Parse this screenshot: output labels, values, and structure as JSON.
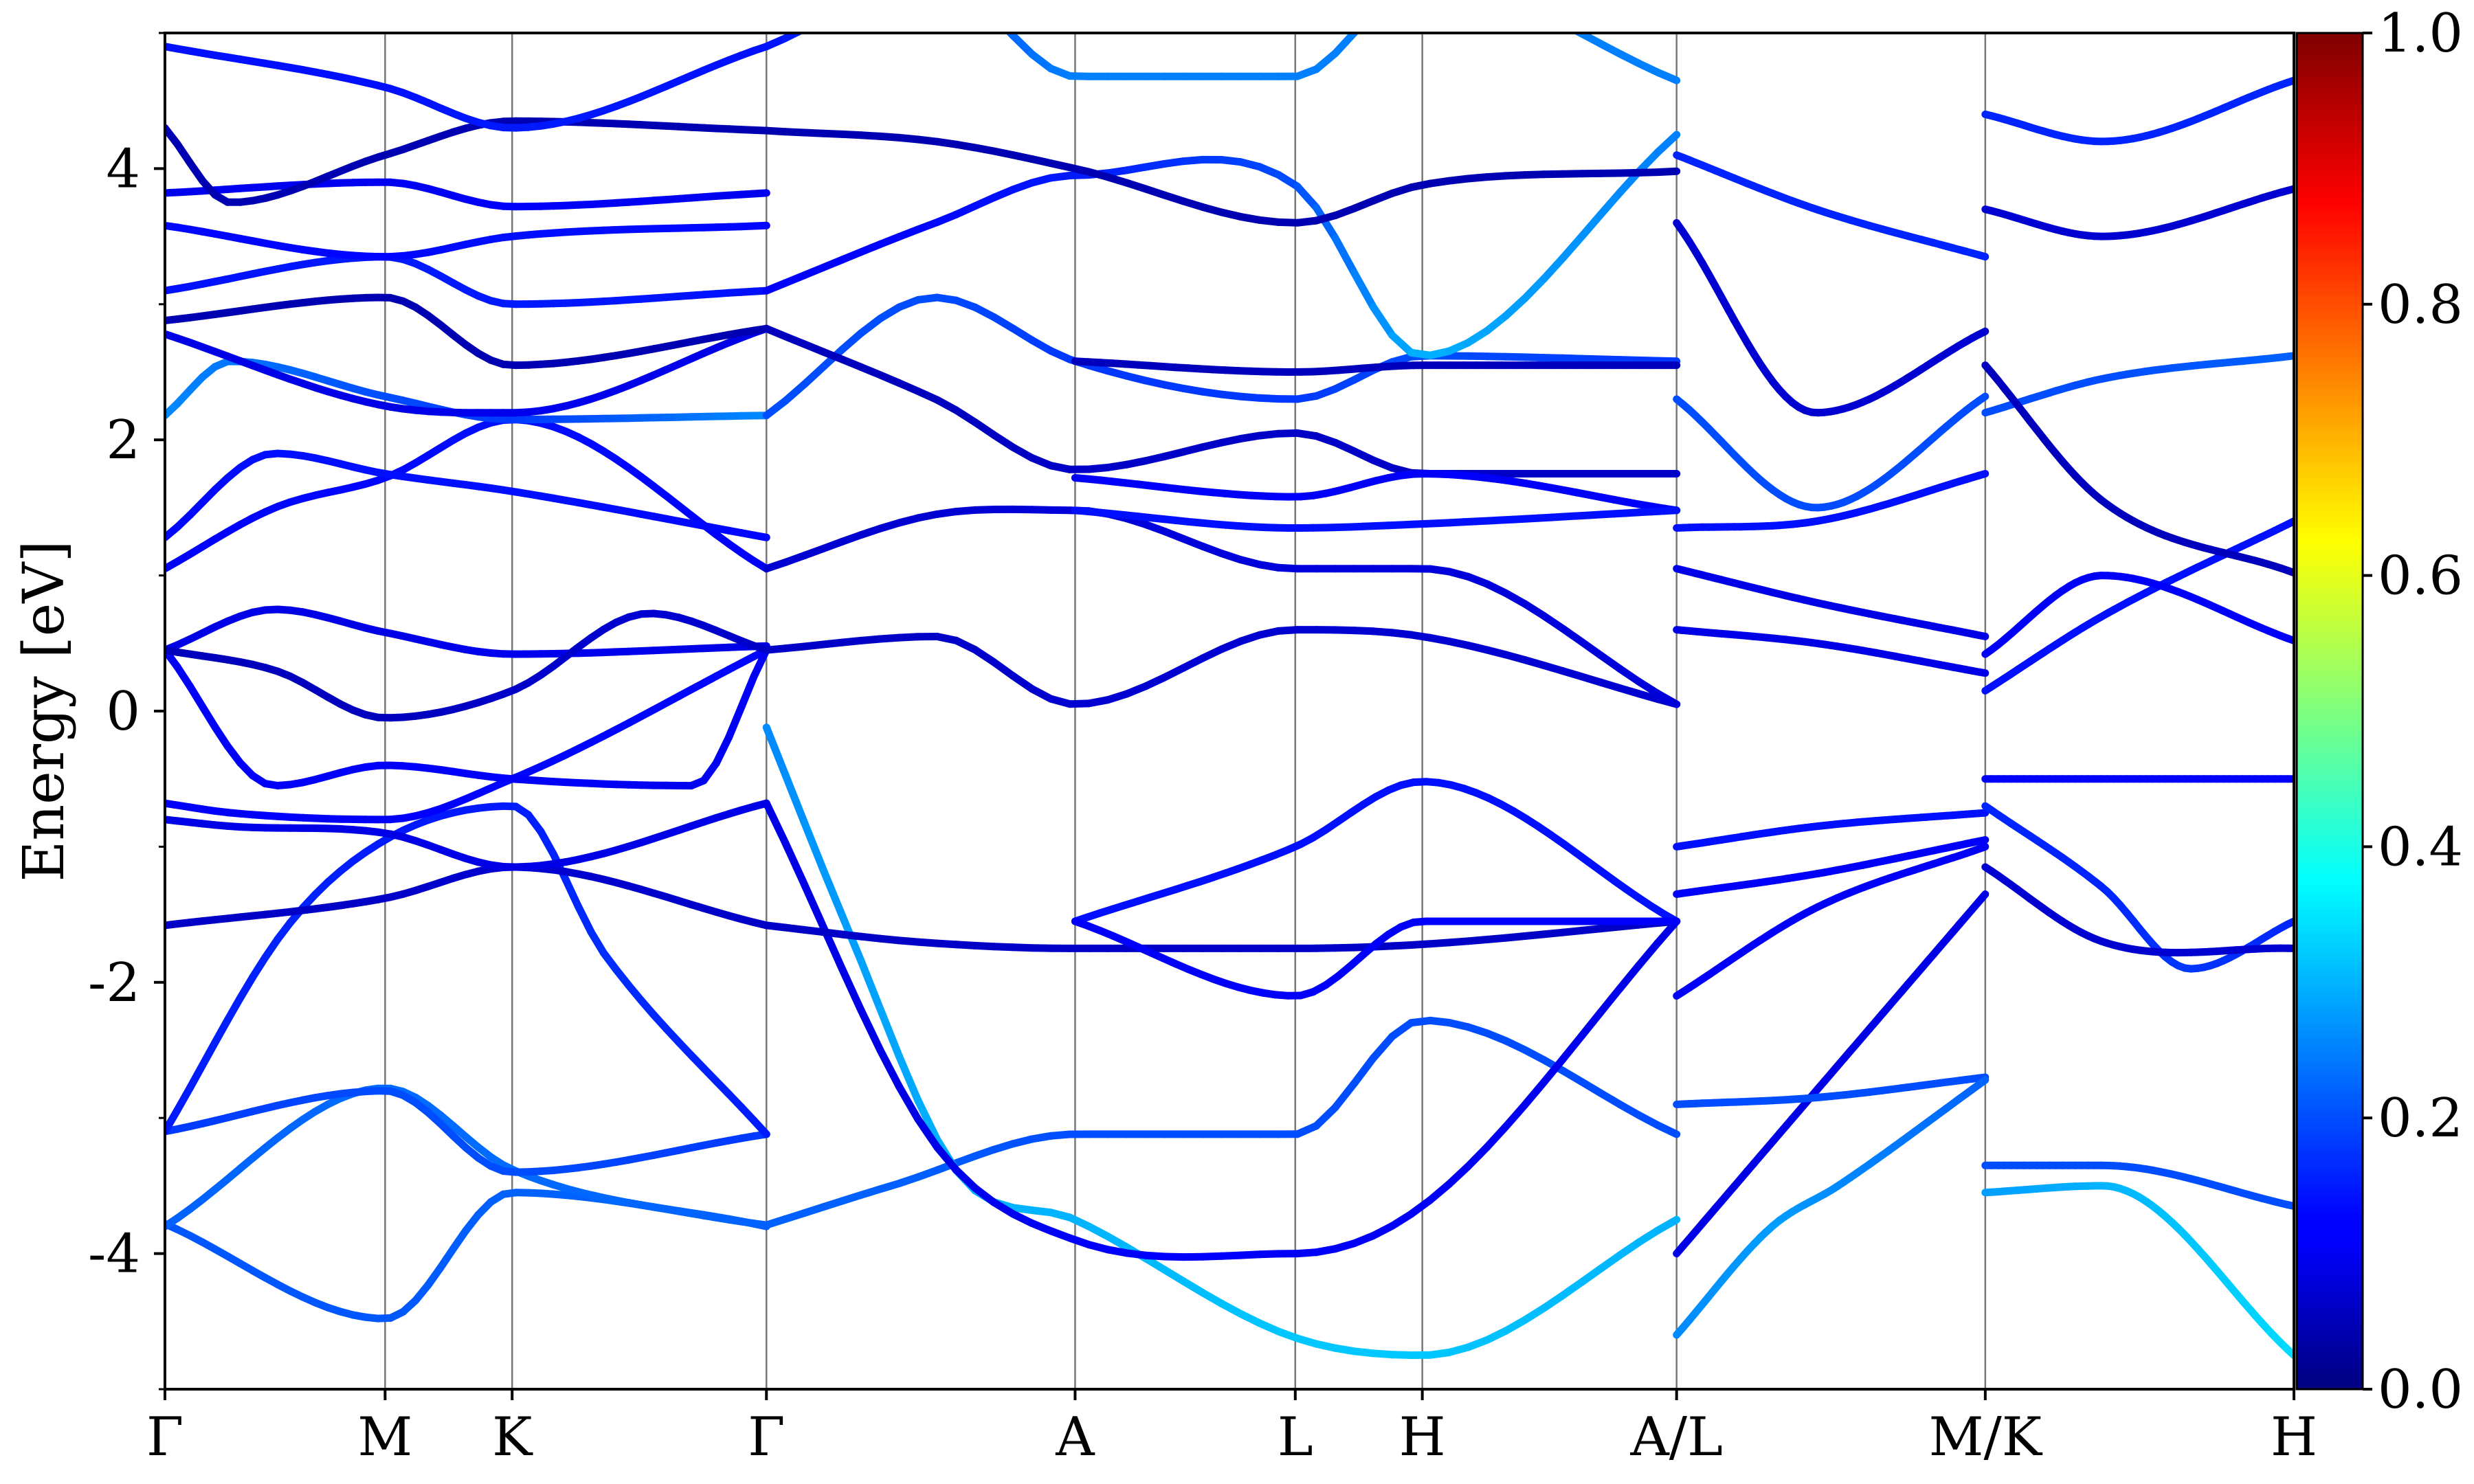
{
  "chart_data": {
    "type": "line",
    "title": "",
    "xlabel": "",
    "ylabel": "Energy [eV]",
    "ylim": [
      -5,
      5
    ],
    "y_ticks": [
      -4,
      -2,
      0,
      2,
      4
    ],
    "grid": false,
    "legend": "none",
    "kpoints": [
      {
        "label": "Γ",
        "x": 0.0
      },
      {
        "label": "M",
        "x": 1.0
      },
      {
        "label": "K",
        "x": 1.577
      },
      {
        "label": "Γ",
        "x": 2.732
      },
      {
        "label": "A",
        "x": 4.134
      },
      {
        "label": "L",
        "x": 5.134
      },
      {
        "label": "H",
        "x": 5.711
      },
      {
        "label": "A/L",
        "x": 6.866
      },
      {
        "label": "M/K",
        "x": 8.268
      },
      {
        "label": "H",
        "x": 9.67
      }
    ],
    "colorbar": {
      "range": [
        0.0,
        1.0
      ],
      "ticks": [
        "0.0",
        "0.2",
        "0.4",
        "0.6",
        "0.8",
        "1.0"
      ],
      "colormap": "jet"
    },
    "series": [
      {
        "x": [
          0.0,
          1.0,
          1.577,
          2.732
        ],
        "y": [
          -3.78,
          -4.48,
          -3.55,
          -3.79
        ],
        "w": [
          0.21,
          0.21,
          0.22,
          0.22
        ]
      },
      {
        "x": [
          0.0,
          1.0,
          1.577,
          2.732
        ],
        "y": [
          -3.8,
          -2.78,
          -3.38,
          -3.8
        ],
        "w": [
          0.22,
          0.23,
          0.23,
          0.22
        ]
      },
      {
        "x": [
          0.0,
          1.0,
          1.577,
          2.732
        ],
        "y": [
          -3.1,
          -2.8,
          -3.4,
          -3.12
        ],
        "w": [
          0.18,
          0.2,
          0.2,
          0.18
        ]
      },
      {
        "x": [
          0.0,
          0.55,
          1.0,
          1.577,
          2.0,
          2.732
        ],
        "y": [
          -3.1,
          -1.6,
          -0.95,
          -0.7,
          -1.8,
          -3.12
        ],
        "w": [
          0.15,
          0.16,
          0.15,
          0.15,
          0.17,
          0.15
        ]
      },
      {
        "x": [
          0.0,
          1.0,
          1.577,
          2.732
        ],
        "y": [
          -1.58,
          -1.38,
          -1.15,
          -1.58
        ],
        "w": [
          0.07,
          0.07,
          0.08,
          0.07
        ]
      },
      {
        "x": [
          0.0,
          0.3,
          1.0,
          1.577,
          2.732
        ],
        "y": [
          -0.8,
          -0.85,
          -0.9,
          -1.15,
          -0.68
        ],
        "w": [
          0.1,
          0.1,
          0.1,
          0.1,
          0.1
        ]
      },
      {
        "x": [
          0.0,
          0.3,
          1.0,
          1.577,
          2.732
        ],
        "y": [
          -0.68,
          -0.75,
          -0.8,
          -0.5,
          0.45
        ],
        "w": [
          0.12,
          0.12,
          0.12,
          0.13,
          0.13
        ]
      },
      {
        "x": [
          0.0,
          0.5,
          1.0,
          1.577,
          2.4,
          2.732
        ],
        "y": [
          0.45,
          -0.55,
          -0.4,
          -0.5,
          -0.55,
          0.45
        ],
        "w": [
          0.12,
          0.12,
          0.12,
          0.12,
          0.11,
          0.12
        ]
      },
      {
        "x": [
          0.0,
          0.5,
          1.0,
          1.577,
          2.732
        ],
        "y": [
          0.45,
          0.75,
          0.58,
          0.42,
          0.48
        ],
        "w": [
          0.1,
          0.1,
          0.1,
          0.11,
          0.1
        ]
      },
      {
        "x": [
          0.0,
          0.5,
          1.0,
          1.577,
          2.2,
          2.732
        ],
        "y": [
          0.45,
          0.3,
          -0.05,
          0.15,
          0.72,
          0.45
        ],
        "w": [
          0.06,
          0.06,
          0.06,
          0.07,
          0.08,
          0.07
        ]
      },
      {
        "x": [
          0.0,
          0.5,
          1.0,
          1.577,
          2.732
        ],
        "y": [
          1.05,
          1.5,
          1.72,
          2.15,
          1.05
        ],
        "w": [
          0.12,
          0.13,
          0.13,
          0.14,
          0.12
        ]
      },
      {
        "x": [
          0.0,
          0.5,
          1.0,
          1.577,
          2.732
        ],
        "y": [
          1.28,
          1.9,
          1.75,
          1.62,
          1.28
        ],
        "w": [
          0.13,
          0.14,
          0.14,
          0.14,
          0.13
        ]
      },
      {
        "x": [
          0.0,
          0.3,
          1.0,
          1.577,
          2.732
        ],
        "y": [
          2.18,
          2.58,
          2.32,
          2.15,
          2.18
        ],
        "w": [
          0.26,
          0.24,
          0.2,
          0.18,
          0.26
        ]
      },
      {
        "x": [
          0.0,
          1.0,
          1.577,
          2.732
        ],
        "y": [
          2.78,
          2.25,
          2.2,
          2.82
        ],
        "w": [
          0.1,
          0.1,
          0.11,
          0.1
        ]
      },
      {
        "x": [
          0.0,
          1.0,
          1.577,
          2.732
        ],
        "y": [
          2.88,
          3.05,
          2.55,
          2.82
        ],
        "w": [
          0.05,
          0.05,
          0.05,
          0.05
        ]
      },
      {
        "x": [
          0.0,
          1.0,
          1.577,
          2.732
        ],
        "y": [
          3.1,
          3.35,
          3.0,
          3.1
        ],
        "w": [
          0.14,
          0.15,
          0.15,
          0.14
        ]
      },
      {
        "x": [
          0.0,
          1.0,
          1.577,
          2.732
        ],
        "y": [
          3.58,
          3.35,
          3.5,
          3.58
        ],
        "w": [
          0.13,
          0.13,
          0.14,
          0.13
        ]
      },
      {
        "x": [
          0.0,
          1.0,
          1.577,
          2.732
        ],
        "y": [
          3.82,
          3.9,
          3.72,
          3.82
        ],
        "w": [
          0.11,
          0.11,
          0.12,
          0.11
        ]
      },
      {
        "x": [
          0.0,
          0.3,
          1.0,
          1.577,
          2.732
        ],
        "y": [
          4.3,
          3.75,
          4.1,
          4.35,
          4.28
        ],
        "w": [
          0.05,
          0.05,
          0.05,
          0.05,
          0.05
        ]
      },
      {
        "x": [
          0.0,
          1.0,
          1.577,
          2.732
        ],
        "y": [
          4.9,
          4.6,
          4.3,
          4.9
        ],
        "w": [
          0.14,
          0.14,
          0.15,
          0.14
        ]
      },
      {
        "x": [
          2.732,
          3.3,
          4.134,
          5.134,
          5.711,
          6.866
        ],
        "y": [
          -3.79,
          -3.5,
          -3.12,
          -3.12,
          -2.28,
          -3.12
        ],
        "w": [
          0.22,
          0.22,
          0.2,
          0.2,
          0.2,
          0.2
        ]
      },
      {
        "x": [
          2.732,
          3.1,
          3.6,
          4.134,
          5.134,
          5.711,
          6.866
        ],
        "y": [
          -0.12,
          -1.6,
          -3.4,
          -3.75,
          -4.62,
          -4.75,
          -3.75
        ],
        "w": [
          0.26,
          0.28,
          0.3,
          0.3,
          0.32,
          0.32,
          0.3
        ]
      },
      {
        "x": [
          2.732,
          3.5,
          4.134,
          5.134,
          5.711,
          6.866
        ],
        "y": [
          -0.68,
          -3.2,
          -3.9,
          -4.0,
          -3.65,
          -1.55
        ],
        "w": [
          0.1,
          0.1,
          0.12,
          0.12,
          0.12,
          0.1
        ]
      },
      {
        "x": [
          2.732,
          3.4,
          4.134,
          5.134,
          5.711,
          6.866
        ],
        "y": [
          -1.58,
          -1.7,
          -1.75,
          -1.75,
          -1.72,
          -1.55
        ],
        "w": [
          0.07,
          0.07,
          0.07,
          0.07,
          0.07,
          0.07
        ]
      },
      {
        "x": [
          2.732,
          3.5,
          4.134,
          5.134,
          5.711,
          6.866
        ],
        "y": [
          0.45,
          0.55,
          0.05,
          0.6,
          0.55,
          0.05
        ],
        "w": [
          0.07,
          0.07,
          0.08,
          0.08,
          0.08,
          0.08
        ]
      },
      {
        "x": [
          2.732,
          3.5,
          4.134,
          5.134,
          5.711,
          6.866
        ],
        "y": [
          1.05,
          1.45,
          1.48,
          1.05,
          1.05,
          0.05
        ],
        "w": [
          0.08,
          0.08,
          0.09,
          0.09,
          0.09,
          0.09
        ]
      },
      {
        "x": [
          2.732,
          3.5,
          4.134,
          5.134,
          5.711,
          6.866
        ],
        "y": [
          2.18,
          3.05,
          2.58,
          2.3,
          2.62,
          2.58
        ],
        "w": [
          0.2,
          0.2,
          0.18,
          0.18,
          0.2,
          0.18
        ]
      },
      {
        "x": [
          2.732,
          3.5,
          4.134,
          5.134,
          5.711,
          6.866
        ],
        "y": [
          2.82,
          2.3,
          1.78,
          2.05,
          1.75,
          1.75
        ],
        "w": [
          0.06,
          0.06,
          0.07,
          0.07,
          0.07,
          0.07
        ]
      },
      {
        "x": [
          2.732,
          3.5,
          4.134,
          5.134,
          5.711,
          6.866
        ],
        "y": [
          3.1,
          3.6,
          3.95,
          3.88,
          2.62,
          4.25
        ],
        "w": [
          0.12,
          0.13,
          0.15,
          0.2,
          0.3,
          0.25
        ]
      },
      {
        "x": [
          2.732,
          3.5,
          4.134,
          5.134,
          5.711,
          6.866
        ],
        "y": [
          4.28,
          4.2,
          4.0,
          3.6,
          3.88,
          3.98
        ],
        "w": [
          0.05,
          0.05,
          0.05,
          0.05,
          0.05,
          0.05
        ]
      },
      {
        "x": [
          2.732,
          3.5,
          4.134,
          5.134,
          5.711,
          6.866
        ],
        "y": [
          4.9,
          5.4,
          4.68,
          4.68,
          5.4,
          4.65
        ],
        "w": [
          0.14,
          0.2,
          0.25,
          0.25,
          0.25,
          0.25
        ]
      },
      {
        "x": [
          4.134,
          5.134,
          5.711,
          6.866
        ],
        "y": [
          -1.55,
          -1.0,
          -0.52,
          -1.55
        ],
        "w": [
          0.14,
          0.14,
          0.14,
          0.14
        ]
      },
      {
        "x": [
          4.134,
          5.134,
          5.711,
          6.866
        ],
        "y": [
          -1.55,
          -2.1,
          -1.55,
          -1.55
        ],
        "w": [
          0.12,
          0.12,
          0.12,
          0.12
        ]
      },
      {
        "x": [
          4.134,
          5.134,
          5.711,
          6.866
        ],
        "y": [
          1.72,
          1.58,
          1.75,
          1.48
        ],
        "w": [
          0.12,
          0.12,
          0.12,
          0.12
        ]
      },
      {
        "x": [
          4.134,
          5.134,
          5.711,
          6.866
        ],
        "y": [
          1.48,
          1.35,
          1.38,
          1.48
        ],
        "w": [
          0.14,
          0.14,
          0.14,
          0.14
        ]
      },
      {
        "x": [
          4.134,
          5.134,
          5.711,
          6.866
        ],
        "y": [
          2.58,
          2.5,
          2.55,
          2.55
        ],
        "w": [
          0.06,
          0.06,
          0.06,
          0.06
        ]
      },
      {
        "x": [
          6.866,
          7.5,
          8.268
        ],
        "y": [
          -4.0,
          -2.8,
          -1.35
        ],
        "w": [
          0.1,
          0.1,
          0.1
        ]
      },
      {
        "x": [
          6.866,
          7.5,
          8.268
        ],
        "y": [
          -2.9,
          -2.85,
          -2.7
        ],
        "w": [
          0.2,
          0.2,
          0.2
        ]
      },
      {
        "x": [
          6.866,
          7.3,
          7.6,
          8.268
        ],
        "y": [
          -4.6,
          -3.8,
          -3.5,
          -2.72
        ],
        "w": [
          0.26,
          0.28,
          0.26,
          0.22
        ]
      },
      {
        "x": [
          6.866,
          7.5,
          8.268
        ],
        "y": [
          -1.0,
          -0.85,
          -0.75
        ],
        "w": [
          0.14,
          0.14,
          0.14
        ]
      },
      {
        "x": [
          6.866,
          7.5,
          8.268
        ],
        "y": [
          -1.35,
          -1.2,
          -0.95
        ],
        "w": [
          0.12,
          0.12,
          0.12
        ]
      },
      {
        "x": [
          6.866,
          7.5,
          8.268
        ],
        "y": [
          -2.1,
          -1.45,
          -1.0
        ],
        "w": [
          0.12,
          0.12,
          0.12
        ]
      },
      {
        "x": [
          6.866,
          7.5,
          8.268
        ],
        "y": [
          0.6,
          0.5,
          0.28
        ],
        "w": [
          0.1,
          0.1,
          0.1
        ]
      },
      {
        "x": [
          6.866,
          7.5,
          8.268
        ],
        "y": [
          1.05,
          0.8,
          0.55
        ],
        "w": [
          0.1,
          0.1,
          0.1
        ]
      },
      {
        "x": [
          6.866,
          7.5,
          8.268
        ],
        "y": [
          1.35,
          1.4,
          1.75
        ],
        "w": [
          0.14,
          0.14,
          0.14
        ]
      },
      {
        "x": [
          6.866,
          7.5,
          8.268
        ],
        "y": [
          2.3,
          1.5,
          2.32
        ],
        "w": [
          0.2,
          0.2,
          0.2
        ]
      },
      {
        "x": [
          6.866,
          7.5,
          8.268
        ],
        "y": [
          3.6,
          2.2,
          2.8
        ],
        "w": [
          0.08,
          0.08,
          0.08
        ]
      },
      {
        "x": [
          6.866,
          7.5,
          8.268
        ],
        "y": [
          4.1,
          3.7,
          3.35
        ],
        "w": [
          0.16,
          0.16,
          0.16
        ]
      },
      {
        "x": [
          8.268,
          8.8,
          9.67
        ],
        "y": [
          -3.35,
          -3.35,
          -3.65
        ],
        "w": [
          0.2,
          0.2,
          0.2
        ]
      },
      {
        "x": [
          8.268,
          8.8,
          9.67
        ],
        "y": [
          -3.55,
          -3.5,
          -4.75
        ],
        "w": [
          0.28,
          0.3,
          0.34
        ]
      },
      {
        "x": [
          8.268,
          8.9,
          9.67
        ],
        "y": [
          -0.5,
          -0.5,
          -0.5
        ],
        "w": [
          0.12,
          0.12,
          0.12
        ]
      },
      {
        "x": [
          8.268,
          8.8,
          9.2,
          9.67
        ],
        "y": [
          -0.7,
          -1.3,
          -1.9,
          -1.55
        ],
        "w": [
          0.16,
          0.16,
          0.18,
          0.16
        ]
      },
      {
        "x": [
          8.268,
          8.8,
          9.67
        ],
        "y": [
          -1.15,
          -1.7,
          -1.75
        ],
        "w": [
          0.08,
          0.08,
          0.08
        ]
      },
      {
        "x": [
          8.268,
          8.8,
          9.67
        ],
        "y": [
          0.15,
          0.7,
          1.4
        ],
        "w": [
          0.14,
          0.14,
          0.14
        ]
      },
      {
        "x": [
          8.268,
          8.8,
          9.67
        ],
        "y": [
          0.42,
          1.0,
          0.52
        ],
        "w": [
          0.12,
          0.12,
          0.12
        ]
      },
      {
        "x": [
          8.268,
          8.8,
          9.67
        ],
        "y": [
          2.2,
          2.45,
          2.62
        ],
        "w": [
          0.2,
          0.2,
          0.22
        ]
      },
      {
        "x": [
          8.268,
          8.8,
          9.67
        ],
        "y": [
          2.55,
          1.55,
          1.02
        ],
        "w": [
          0.06,
          0.06,
          0.06
        ]
      },
      {
        "x": [
          8.268,
          8.8,
          9.67
        ],
        "y": [
          3.7,
          3.5,
          3.85
        ],
        "w": [
          0.08,
          0.08,
          0.08
        ]
      },
      {
        "x": [
          8.268,
          8.8,
          9.67
        ],
        "y": [
          4.4,
          4.2,
          4.65
        ],
        "w": [
          0.16,
          0.16,
          0.16
        ]
      }
    ]
  }
}
